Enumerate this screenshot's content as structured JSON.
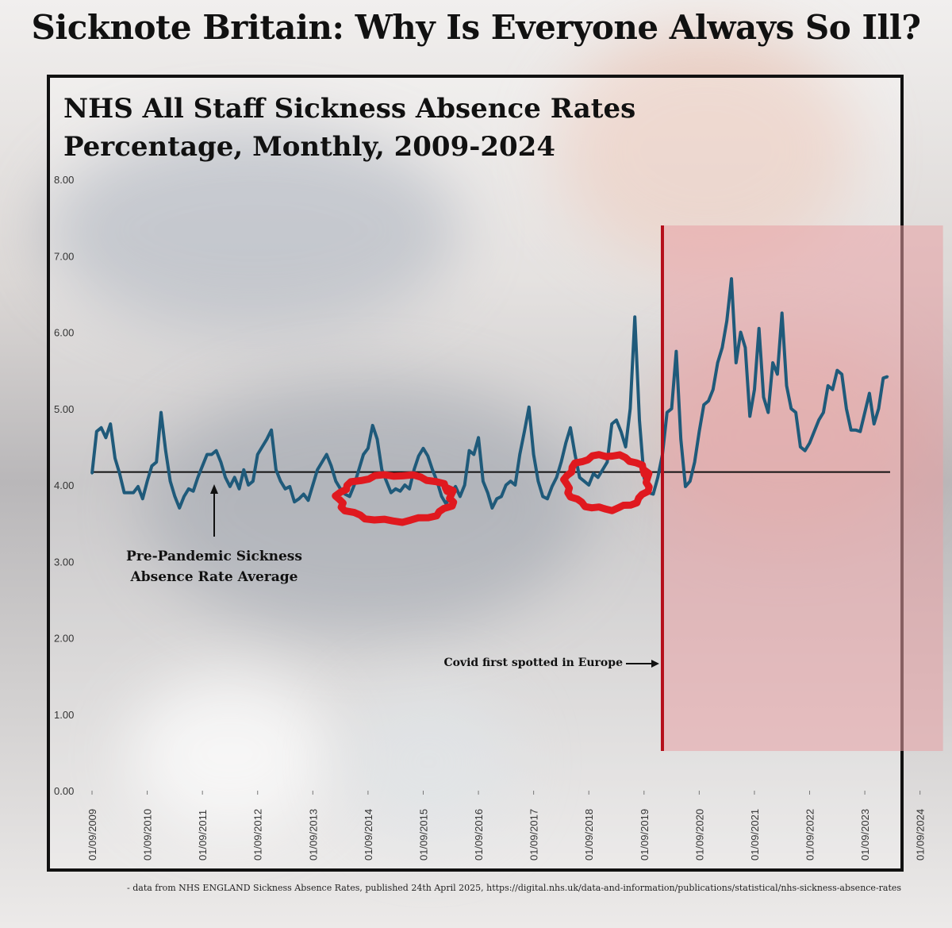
{
  "headline": "Sicknote Britain: Why Is Everyone Always So Ill?",
  "source_note": "- data from NHS ENGLAND Sickness Absence Rates, published 24th April 2025, https://digital.nhs.uk/data-and-information/publications/statistical/nhs-sickness-absence-rates",
  "colors": {
    "series": "#1f5a7a",
    "average_line": "#111111",
    "covid_line": "#b50f1b",
    "covid_shade": "#e8a0a4",
    "marker_circles": "#e0191f"
  },
  "chart_data": {
    "type": "line",
    "title": "NHS All Staff Sickness Absence Rates",
    "subtitle": "Percentage, Monthly, 2009-2024",
    "xlabel": "",
    "ylabel": "",
    "ylim": [
      0,
      8
    ],
    "yticks": [
      "0.00",
      "1.00",
      "2.00",
      "3.00",
      "4.00",
      "5.00",
      "6.00",
      "7.00",
      "8.00"
    ],
    "xticks": [
      "01/09/2009",
      "01/09/2010",
      "01/09/2011",
      "01/09/2012",
      "01/09/2013",
      "01/09/2014",
      "01/09/2015",
      "01/09/2016",
      "01/09/2017",
      "01/09/2018",
      "01/09/2019",
      "01/09/2020",
      "01/09/2021",
      "01/09/2022",
      "01/09/2023",
      "01/09/2024"
    ],
    "grid": false,
    "series": [
      {
        "name": "",
        "x_start": "2009-09",
        "frequency": "monthly",
        "values": [
          4.15,
          4.7,
          4.75,
          4.62,
          4.8,
          4.35,
          4.15,
          3.9,
          3.9,
          3.9,
          3.98,
          3.82,
          4.05,
          4.25,
          4.3,
          4.95,
          4.45,
          4.05,
          3.85,
          3.7,
          3.85,
          3.95,
          3.92,
          4.1,
          4.25,
          4.4,
          4.4,
          4.45,
          4.3,
          4.1,
          3.98,
          4.1,
          3.95,
          4.2,
          4.0,
          4.05,
          4.4,
          4.5,
          4.6,
          4.72,
          4.2,
          4.05,
          3.95,
          3.98,
          3.78,
          3.82,
          3.88,
          3.8,
          4.0,
          4.2,
          4.3,
          4.4,
          4.25,
          4.05,
          3.95,
          3.88,
          3.85,
          4.0,
          4.2,
          4.4,
          4.48,
          4.78,
          4.6,
          4.2,
          4.05,
          3.9,
          3.95,
          3.92,
          4.0,
          3.95,
          4.2,
          4.38,
          4.48,
          4.38,
          4.2,
          4.05,
          3.85,
          3.75,
          3.9,
          3.98,
          3.85,
          4.0,
          4.45,
          4.4,
          4.62,
          4.05,
          3.9,
          3.7,
          3.82,
          3.85,
          4.0,
          4.05,
          4.0,
          4.4,
          4.7,
          5.02,
          4.4,
          4.05,
          3.85,
          3.82,
          3.98,
          4.1,
          4.3,
          4.55,
          4.75,
          4.4,
          4.1,
          4.05,
          4.0,
          4.15,
          4.1,
          4.2,
          4.3,
          4.8,
          4.85,
          4.7,
          4.5,
          5.0,
          6.2,
          4.85,
          4.1,
          3.9,
          3.88,
          4.1,
          4.4,
          4.95,
          5.0,
          5.75,
          4.6,
          3.98,
          4.05,
          4.3,
          4.7,
          5.05,
          5.1,
          5.25,
          5.6,
          5.8,
          6.15,
          6.7,
          5.6,
          6.0,
          5.8,
          4.9,
          5.25,
          6.05,
          5.15,
          4.95,
          5.6,
          5.45,
          6.25,
          5.3,
          5.0,
          4.95,
          4.5,
          4.45,
          4.55,
          4.7,
          4.85,
          4.95,
          5.3,
          5.25,
          5.5,
          5.45,
          5.0,
          4.72,
          4.72,
          4.7,
          4.95,
          5.2,
          4.8,
          5.0,
          5.4,
          5.42
        ]
      }
    ],
    "reference_lines": [
      {
        "label": "Pre-Pandemic Sickness Absence Rate Average",
        "value": 4.17
      }
    ],
    "annotations": {
      "covid_label": "Covid first spotted in Europe",
      "covid_date": "2020-01",
      "covid_shaded_from": "2020-01",
      "covid_shaded_to": "2025-02",
      "highlight_circles": [
        {
          "around_date": "2015-03",
          "around_value": 3.85
        },
        {
          "around_date": "2019-01",
          "around_value": 4.1
        }
      ]
    },
    "legend": "none"
  }
}
